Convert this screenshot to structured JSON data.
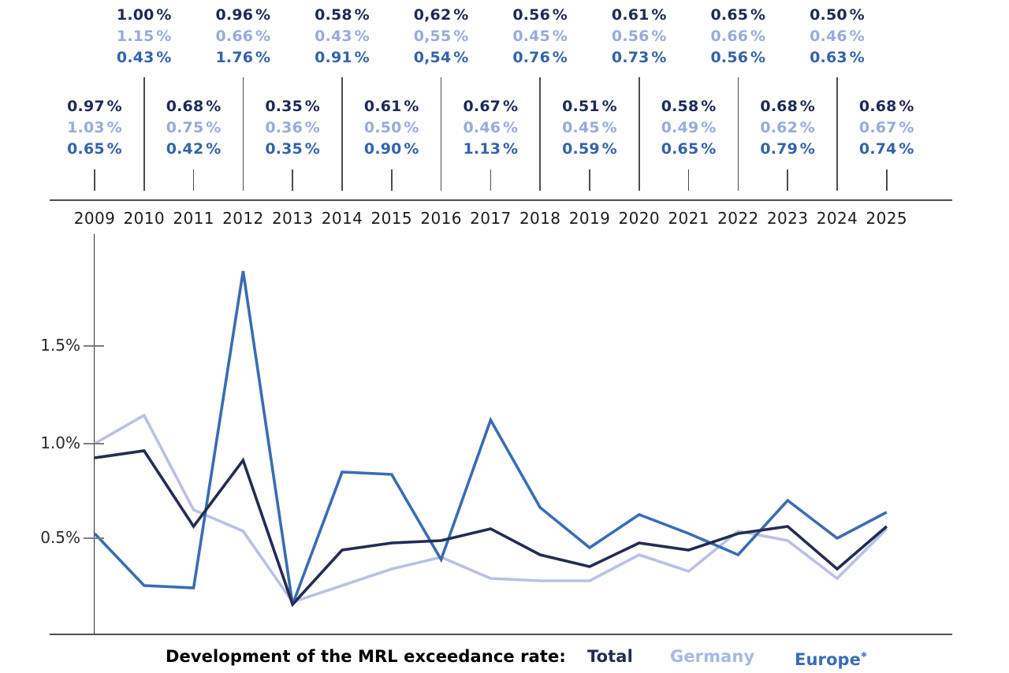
{
  "header": {
    "top_columns": [
      {
        "year": "2010",
        "values": [
          "1.00 %",
          "1.15 %",
          "0.43 %"
        ]
      },
      {
        "year": "2012",
        "values": [
          "0.96 %",
          "0.66 %",
          "1.76 %"
        ]
      },
      {
        "year": "2014",
        "values": [
          "0.58 %",
          "0.43 %",
          "0.91 %"
        ]
      },
      {
        "year": "2016",
        "values": [
          "0,62 %",
          "0,55 %",
          "0,54 %"
        ]
      },
      {
        "year": "2018",
        "values": [
          "0.56 %",
          "0.45 %",
          "0.76 %"
        ]
      },
      {
        "year": "2020",
        "values": [
          "0.61 %",
          "0.56 %",
          "0.73 %"
        ]
      },
      {
        "year": "2022",
        "values": [
          "0.65 %",
          "0.66 %",
          "0.56 %"
        ]
      },
      {
        "year": "2024",
        "values": [
          "0.50 %",
          "0.46 %",
          "0.63 %"
        ]
      }
    ],
    "bottom_columns": [
      {
        "year": "2009",
        "values": [
          "0.97 %",
          "1.03 %",
          "0.65 %"
        ]
      },
      {
        "year": "2011",
        "values": [
          "0.68 %",
          "0.75 %",
          "0.42 %"
        ]
      },
      {
        "year": "2013",
        "values": [
          "0.35 %",
          "0.36 %",
          "0.35 %"
        ]
      },
      {
        "year": "2015",
        "values": [
          "0.61 %",
          "0.50 %",
          "0.90 %"
        ]
      },
      {
        "year": "2017",
        "values": [
          "0.67 %",
          "0.46 %",
          "1.13 %"
        ]
      },
      {
        "year": "2019",
        "values": [
          "0.51 %",
          "0.45 %",
          "0.59 %"
        ]
      },
      {
        "year": "2021",
        "values": [
          "0.58 %",
          "0.49 %",
          "0.65 %"
        ]
      },
      {
        "year": "2023",
        "values": [
          "0.68 %",
          "0.62 %",
          "0.79 %"
        ]
      },
      {
        "year": "2025",
        "values": [
          "0.68 %",
          "0.67 %",
          "0.74 %"
        ]
      }
    ]
  },
  "axis": {
    "years": [
      "2009",
      "2010",
      "2011",
      "2012",
      "2013",
      "2014",
      "2015",
      "2016",
      "2017",
      "2018",
      "2019",
      "2020",
      "2021",
      "2022",
      "2023",
      "2024",
      "2025"
    ],
    "yticks": [
      "0.5%",
      "1.0%",
      "1.5%"
    ]
  },
  "legend": {
    "title": "Development of the MRL exceedance rate:",
    "items": [
      {
        "label": "Total",
        "suffix": "",
        "color": "#222c55"
      },
      {
        "label": "Germany",
        "suffix": "",
        "color": "#aab8e4"
      },
      {
        "label": "Europe",
        "suffix": "*",
        "color": "#3a6db7"
      }
    ]
  },
  "chart_data": {
    "type": "line",
    "title": "Development of the MRL exceedance rate",
    "x": [
      2009,
      2010,
      2011,
      2012,
      2013,
      2014,
      2015,
      2016,
      2017,
      2018,
      2019,
      2020,
      2021,
      2022,
      2023,
      2024,
      2025
    ],
    "series": [
      {
        "name": "Total",
        "label_color": "#1d2a56",
        "line_color": "#232c54",
        "values": [
          0.97,
          1.0,
          0.68,
          0.96,
          0.35,
          0.58,
          0.61,
          0.62,
          0.67,
          0.56,
          0.51,
          0.61,
          0.58,
          0.65,
          0.68,
          0.5,
          0.68
        ]
      },
      {
        "name": "Germany",
        "label_color": "#98abdc",
        "line_color": "#b9c1e6",
        "values": [
          1.03,
          1.15,
          0.75,
          0.66,
          0.36,
          0.43,
          0.5,
          0.55,
          0.46,
          0.45,
          0.45,
          0.56,
          0.49,
          0.66,
          0.62,
          0.46,
          0.67
        ]
      },
      {
        "name": "Europe",
        "label_color": "#3263ac",
        "line_color": "#3a6cb5",
        "values": [
          0.65,
          0.43,
          0.42,
          1.76,
          0.35,
          0.91,
          0.9,
          0.54,
          1.13,
          0.76,
          0.59,
          0.73,
          0.65,
          0.56,
          0.79,
          0.63,
          0.74
        ]
      }
    ],
    "ylabel": "",
    "xlabel": "",
    "ylim": [
      0,
      2.0
    ],
    "grid": false,
    "legend_position": "bottom",
    "note": "Values as printed above the plot; 2016 column printed with decimal commas."
  }
}
